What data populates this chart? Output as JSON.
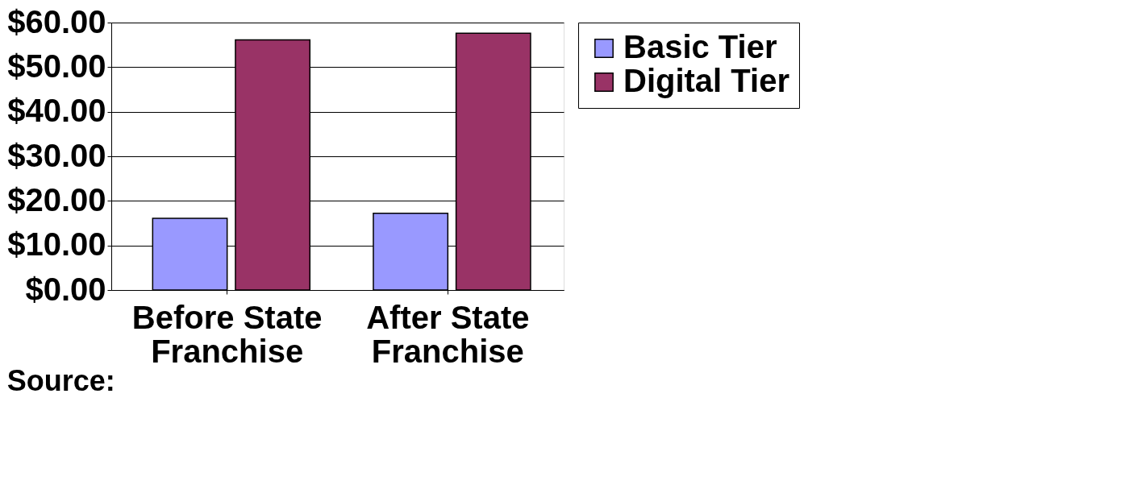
{
  "chart_data": {
    "type": "bar",
    "categories": [
      "Before State Franchise",
      "After State Franchise"
    ],
    "series": [
      {
        "name": "Basic Tier",
        "color": "#9999ff",
        "values": [
          16.1,
          17.2
        ]
      },
      {
        "name": "Digital Tier",
        "color": "#993366",
        "values": [
          56.1,
          57.6
        ]
      }
    ],
    "ylim": [
      0,
      60
    ],
    "yticks": [
      {
        "value": 0,
        "label": "$0.00"
      },
      {
        "value": 10,
        "label": "$10.00"
      },
      {
        "value": 20,
        "label": "$20.00"
      },
      {
        "value": 30,
        "label": "$30.00"
      },
      {
        "value": 40,
        "label": "$40.00"
      },
      {
        "value": 50,
        "label": "$50.00"
      },
      {
        "value": 60,
        "label": "$60.00"
      }
    ],
    "grid": "y",
    "legend": "right",
    "annotations": [
      "Source:"
    ]
  }
}
